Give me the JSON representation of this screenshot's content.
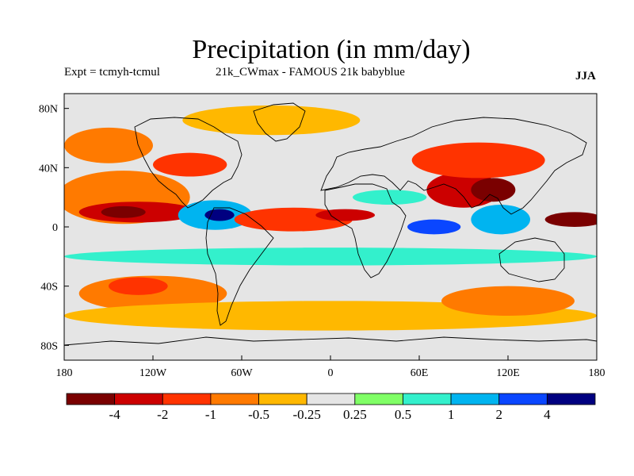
{
  "chart_data": {
    "type": "heatmap",
    "title": "Precipitation (in mm/day)",
    "subtitle_left": "Expt = tcmyh-tcmul",
    "subtitle_center": "21k_CWmax - FAMOUS 21k babyblue",
    "season": "JJA",
    "x_ticks": [
      {
        "value": -180,
        "label": "180"
      },
      {
        "value": -120,
        "label": "120W"
      },
      {
        "value": -60,
        "label": "60W"
      },
      {
        "value": 0,
        "label": "0"
      },
      {
        "value": 60,
        "label": "60E"
      },
      {
        "value": 120,
        "label": "120E"
      },
      {
        "value": 180,
        "label": "180"
      }
    ],
    "y_ticks": [
      {
        "value": 80,
        "label": "80N"
      },
      {
        "value": 40,
        "label": "40N"
      },
      {
        "value": 0,
        "label": "0"
      },
      {
        "value": -40,
        "label": "40S"
      },
      {
        "value": -80,
        "label": "80S"
      }
    ],
    "xlim": [
      -180,
      180
    ],
    "ylim": [
      -90,
      90
    ],
    "colorbar": {
      "colors": [
        "#7a0000",
        "#cc0000",
        "#ff3300",
        "#ff7a00",
        "#ffb800",
        "#e5e5e5",
        "#80ff66",
        "#33f0cc",
        "#00b4f0",
        "#0a46ff",
        "#000080"
      ],
      "labels": [
        "-4",
        "-2",
        "-1",
        "-0.5",
        "-0.25",
        "0.25",
        "0.5",
        "1",
        "2",
        "4"
      ]
    },
    "regions": [
      {
        "name": "north-atlantic-arctic-drying",
        "level": -0.25,
        "lon": -40,
        "lat": 72,
        "rx": 60,
        "ry": 10
      },
      {
        "name": "north-pacific-drying",
        "level": -0.5,
        "lon": -150,
        "lat": 55,
        "rx": 30,
        "ry": 12
      },
      {
        "name": "east-pacific-drying",
        "level": -0.5,
        "lon": -140,
        "lat": 20,
        "rx": 45,
        "ry": 18
      },
      {
        "name": "itcz-pacific-drying",
        "level": -2,
        "lon": -130,
        "lat": 10,
        "rx": 40,
        "ry": 7
      },
      {
        "name": "central-pacific-drying-core",
        "level": -4,
        "lon": -140,
        "lat": 10,
        "rx": 15,
        "ry": 4
      },
      {
        "name": "north-america-drying",
        "level": -1,
        "lon": -95,
        "lat": 42,
        "rx": 25,
        "ry": 8
      },
      {
        "name": "caribbean-wetting",
        "level": 1,
        "lon": -78,
        "lat": 8,
        "rx": 25,
        "ry": 10
      },
      {
        "name": "caribbean-wetting-core",
        "level": 4,
        "lon": -75,
        "lat": 8,
        "rx": 10,
        "ry": 4
      },
      {
        "name": "atlantic-itcz-drying",
        "level": -1,
        "lon": -25,
        "lat": 5,
        "rx": 40,
        "ry": 8
      },
      {
        "name": "west-africa-drying",
        "level": -2,
        "lon": 10,
        "lat": 8,
        "rx": 20,
        "ry": 4
      },
      {
        "name": "arabia-wetting",
        "level": 0.5,
        "lon": 40,
        "lat": 20,
        "rx": 25,
        "ry": 5
      },
      {
        "name": "indian-ocean-wetting",
        "level": 2,
        "lon": 70,
        "lat": 0,
        "rx": 18,
        "ry": 5
      },
      {
        "name": "south-asia-drying",
        "level": -2,
        "lon": 90,
        "lat": 25,
        "rx": 25,
        "ry": 12
      },
      {
        "name": "asia-drying",
        "level": -1,
        "lon": 100,
        "lat": 45,
        "rx": 45,
        "ry": 12
      },
      {
        "name": "east-asia-drying-core",
        "level": -4,
        "lon": 110,
        "lat": 25,
        "rx": 15,
        "ry": 8
      },
      {
        "name": "maritime-continent-wetting",
        "level": 1,
        "lon": 115,
        "lat": 5,
        "rx": 20,
        "ry": 10
      },
      {
        "name": "west-pacific-drying-core",
        "level": -4,
        "lon": 165,
        "lat": 5,
        "rx": 20,
        "ry": 5
      },
      {
        "name": "southern-ocean-wetting",
        "level": 0.5,
        "lon": 0,
        "lat": -20,
        "rx": 180,
        "ry": 6
      },
      {
        "name": "south-pacific-drying",
        "level": -0.5,
        "lon": -120,
        "lat": -45,
        "rx": 50,
        "ry": 12
      },
      {
        "name": "south-pacific-drying-core",
        "level": -1,
        "lon": -130,
        "lat": -40,
        "rx": 20,
        "ry": 6
      },
      {
        "name": "southern-ocean-drying",
        "level": -0.25,
        "lon": 0,
        "lat": -60,
        "rx": 180,
        "ry": 10
      },
      {
        "name": "south-indian-drying",
        "level": -0.5,
        "lon": 120,
        "lat": -50,
        "rx": 45,
        "ry": 10
      }
    ]
  }
}
